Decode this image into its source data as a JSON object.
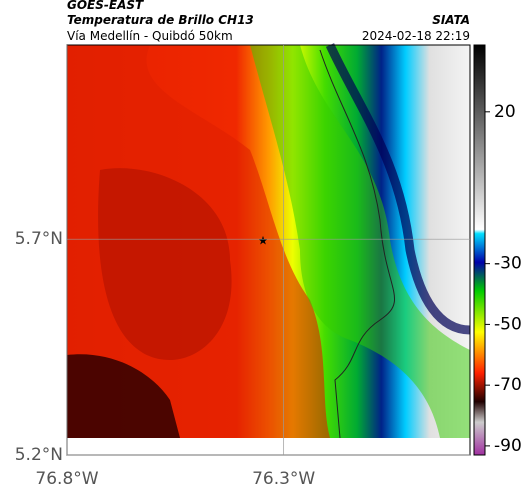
{
  "header": {
    "title": "GOES-EAST",
    "subtitle": "Temperatura de Brillo CH13",
    "location": "Vía Medellín - Quibdó 50km",
    "source": "SIATA",
    "datetime": "2024-02-18 22:19"
  },
  "map": {
    "xlim": [
      -76.8,
      -75.87
    ],
    "ylim": [
      5.2,
      6.15
    ],
    "xticks": [
      {
        "value": -76.8,
        "label": "76.8°W"
      },
      {
        "value": -76.3,
        "label": "76.3°W"
      }
    ],
    "yticks": [
      {
        "value": 5.7,
        "label": "5.7°N"
      },
      {
        "value": 5.2,
        "label": "5.2°N"
      }
    ]
  },
  "colorbar": {
    "lim": [
      42,
      -93
    ],
    "ticks": [
      20,
      -30,
      -50,
      -70,
      -90
    ]
  }
}
